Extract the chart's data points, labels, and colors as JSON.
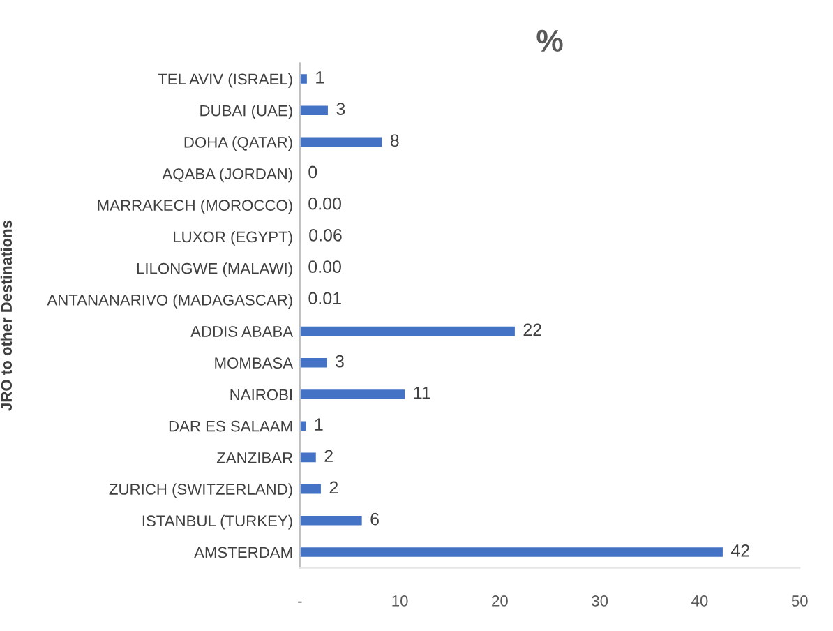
{
  "chart_data": {
    "type": "bar",
    "orientation": "horizontal",
    "title": "%",
    "ylabel": "JRO to other Destinations",
    "categories": [
      "TEL AVIV (ISRAEL)",
      "DUBAI (UAE)",
      "DOHA (QATAR)",
      "AQABA (JORDAN)",
      "MARRAKECH (MOROCCO)",
      "LUXOR (EGYPT)",
      "LILONGWE (MALAWI)",
      "ANTANANARIVO (MADAGASCAR)",
      "ADDIS ABABA",
      "MOMBASA",
      "NAIROBI",
      "DAR ES SALAAM",
      "ZANZIBAR",
      "ZURICH (SWITZERLAND)",
      "ISTANBUL (TURKEY)",
      "AMSTERDAM"
    ],
    "values": [
      0.7,
      2.8,
      8.2,
      0,
      0,
      0.06,
      0,
      0.01,
      21.5,
      2.7,
      10.5,
      0.6,
      1.6,
      2.1,
      6.2,
      42.3
    ],
    "value_labels": [
      "1",
      "3",
      "8",
      "0",
      "0.00",
      "0.06",
      "0.00",
      "0.01",
      "22",
      "3",
      "11",
      "1",
      "2",
      "2",
      "6",
      "42"
    ],
    "color": "#4472c4",
    "xlim": [
      0,
      50
    ],
    "xticks": [
      {
        "value": 0,
        "label": "-"
      },
      10,
      20,
      30,
      40,
      50
    ],
    "grid": false,
    "legend": false
  }
}
